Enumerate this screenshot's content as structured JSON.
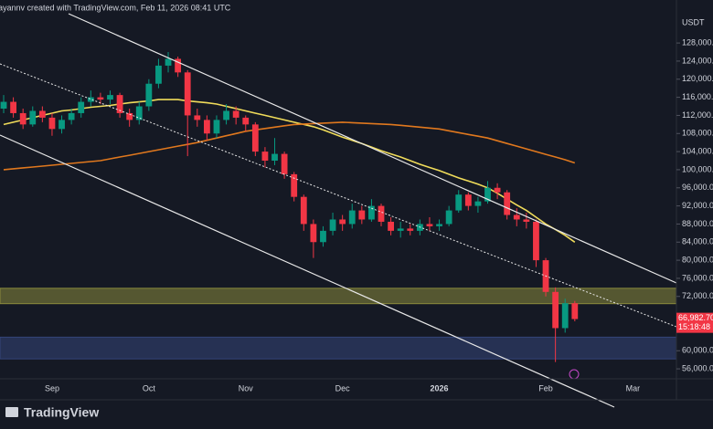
{
  "chart_data": {
    "type": "candlestick",
    "title": "ayannv created with TradingView.com, Feb 11, 2026 08:41 UTC",
    "currency": "USDT",
    "brand": "TradingView",
    "categories": [
      null,
      null,
      null,
      null,
      null,
      "Sep",
      null,
      null,
      null,
      null,
      null,
      null,
      null,
      null,
      null,
      "Oct",
      null,
      null,
      null,
      null,
      null,
      null,
      null,
      null,
      null,
      "Nov",
      null,
      null,
      null,
      null,
      null,
      null,
      null,
      null,
      null,
      "Dec",
      null,
      null,
      null,
      null,
      null,
      null,
      null,
      null,
      null,
      "2026",
      null,
      null,
      null,
      null,
      null,
      null,
      null,
      null,
      null,
      null,
      "Feb",
      null,
      null,
      null,
      null,
      null,
      null,
      null,
      null,
      "Mar"
    ],
    "ohlc": {
      "up_color": "#089981",
      "down_color": "#f23645",
      "open": [
        113500,
        115000,
        112500,
        110000,
        113000,
        111500,
        109000,
        111000,
        112500,
        115000,
        116000,
        115500,
        116500,
        112500,
        111000,
        114000,
        119000,
        123000,
        124500,
        121500,
        112000,
        111000,
        108000,
        111000,
        113000,
        111500,
        110000,
        104000,
        102000,
        103500,
        99000,
        94000,
        88000,
        84000,
        86500,
        89000,
        88000,
        91000,
        89000,
        92000,
        88500,
        86500,
        87000,
        86500,
        88000,
        87500,
        88000,
        91000,
        94500,
        92000,
        93000,
        96000,
        95000,
        90000,
        89000,
        88500,
        80000,
        73000,
        65000,
        70500,
        null,
        null,
        null,
        null,
        null,
        null
      ],
      "high": [
        116500,
        116000,
        113500,
        114000,
        114000,
        112500,
        112000,
        113500,
        116000,
        117500,
        117000,
        117500,
        117000,
        113500,
        115000,
        120000,
        124500,
        126000,
        125000,
        122000,
        113500,
        112000,
        112000,
        114500,
        114000,
        112000,
        110500,
        105000,
        107000,
        104000,
        99500,
        94500,
        89000,
        87500,
        90500,
        90000,
        92500,
        92000,
        93500,
        92500,
        89500,
        88500,
        88000,
        89000,
        89500,
        89000,
        92000,
        95500,
        95000,
        94000,
        97500,
        97000,
        95500,
        91500,
        90500,
        89000,
        80500,
        74000,
        71500,
        71000,
        null,
        null,
        null,
        null,
        null,
        null
      ],
      "low": [
        112500,
        111500,
        109000,
        109500,
        110500,
        107500,
        108000,
        110000,
        111500,
        114000,
        114500,
        114500,
        111500,
        109500,
        110000,
        113000,
        118000,
        121500,
        120500,
        103000,
        109500,
        106500,
        107000,
        110000,
        110000,
        108500,
        103000,
        100500,
        101000,
        98000,
        93000,
        86500,
        80500,
        83000,
        85500,
        86500,
        87000,
        88000,
        88500,
        87500,
        85500,
        85000,
        85500,
        85500,
        86500,
        86500,
        87500,
        90500,
        91000,
        90500,
        92500,
        93500,
        89000,
        87500,
        87000,
        78500,
        72000,
        57500,
        64000,
        66500,
        null,
        null,
        null,
        null,
        null,
        null
      ],
      "close": [
        115000,
        112500,
        110000,
        113000,
        111500,
        109000,
        111000,
        112500,
        115000,
        116000,
        115500,
        116500,
        112500,
        111000,
        114000,
        119000,
        123000,
        124500,
        121500,
        112000,
        111000,
        108000,
        111000,
        113000,
        111500,
        110000,
        104000,
        102000,
        103500,
        99000,
        94000,
        88000,
        84000,
        86500,
        89000,
        88000,
        91000,
        89000,
        92000,
        88500,
        86500,
        87000,
        86500,
        88000,
        87500,
        88000,
        91000,
        94500,
        92000,
        93000,
        96000,
        95000,
        90000,
        89000,
        88500,
        80000,
        73000,
        65000,
        70500,
        67000,
        null,
        null,
        null,
        null,
        null,
        null
      ]
    },
    "lines": [
      {
        "color": "#f0dc5a",
        "values": [
          110000,
          110500,
          111000,
          111500,
          112000,
          112500,
          113000,
          113200,
          113500,
          113800,
          114000,
          114200,
          114500,
          114800,
          115000,
          115200,
          115500,
          115500,
          115500,
          115200,
          115000,
          114800,
          114500,
          114000,
          113500,
          113000,
          112500,
          112000,
          111500,
          111000,
          110500,
          110000,
          109500,
          108800,
          108000,
          107200,
          106500,
          105800,
          105000,
          104200,
          103500,
          102800,
          102000,
          101200,
          100500,
          99800,
          99000,
          98200,
          97500,
          96800,
          96000,
          94800,
          93500,
          92200,
          91000,
          89500,
          88000,
          86800,
          85500,
          84000,
          null,
          null,
          null,
          null,
          null,
          null
        ]
      },
      {
        "color": "#e0781e",
        "values": [
          100000,
          100200,
          100400,
          100600,
          100800,
          101000,
          101200,
          101400,
          101600,
          101800,
          102000,
          102400,
          102800,
          103200,
          103600,
          104000,
          104400,
          104800,
          105200,
          105600,
          106000,
          106500,
          107000,
          107500,
          108000,
          108500,
          108800,
          109100,
          109400,
          109700,
          110000,
          110100,
          110200,
          110300,
          110400,
          110500,
          110400,
          110300,
          110200,
          110100,
          110000,
          109800,
          109600,
          109400,
          109200,
          109000,
          108600,
          108200,
          107800,
          107400,
          107000,
          106400,
          105800,
          105200,
          104600,
          104000,
          103400,
          102800,
          102200,
          101500,
          null,
          null,
          null,
          null,
          null,
          null
        ]
      }
    ],
    "zones": [
      {
        "range": [
          70400,
          73800
        ],
        "color": "#8a8a3c"
      },
      {
        "range": [
          58200,
          63000
        ],
        "color": "#34457a"
      }
    ],
    "last_price": {
      "value": 66982.7,
      "label": "66,982.70",
      "countdown": "15:18:48",
      "color": "#f23645"
    },
    "ylim": [
      53800,
      137500
    ],
    "yticks": [
      {
        "value": 56000,
        "label": "56,000.00"
      },
      {
        "value": 60000,
        "label": "60,000.00"
      },
      {
        "value": 72000,
        "label": "72,000.00"
      },
      {
        "value": 76000,
        "label": "76,000.00"
      },
      {
        "value": 80000,
        "label": "80,000.00"
      },
      {
        "value": 84000,
        "label": "84,000.00"
      },
      {
        "value": 88000,
        "label": "88,000.00"
      },
      {
        "value": 92000,
        "label": "92,000.00"
      },
      {
        "value": 96000,
        "label": "96,000.00"
      },
      {
        "value": 100000,
        "label": "100,000.00"
      },
      {
        "value": 104000,
        "label": "104,000.00"
      },
      {
        "value": 108000,
        "label": "108,000.00"
      },
      {
        "value": 112000,
        "label": "112,000.00"
      },
      {
        "value": 116000,
        "label": "116,000.00"
      },
      {
        "value": 120000,
        "label": "120,000.00"
      },
      {
        "value": 124000,
        "label": "124,000.00"
      },
      {
        "value": 128000,
        "label": "128,000.00"
      }
    ],
    "grid": false
  }
}
